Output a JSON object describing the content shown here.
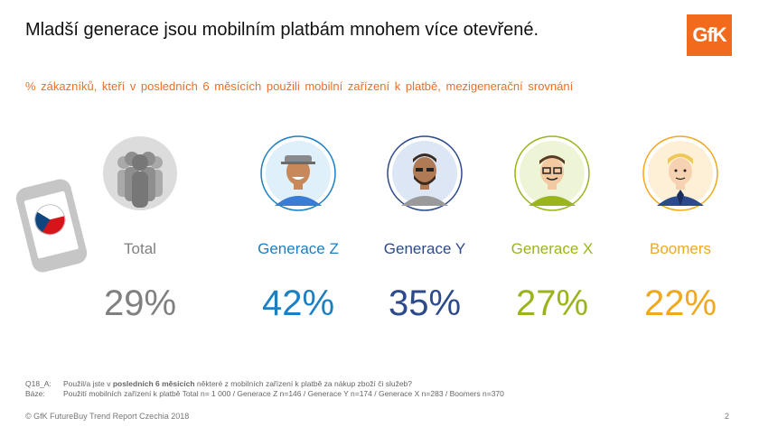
{
  "title": "Mladší generace jsou mobilním platbám mnohem více otevřené.",
  "logo_text": "GfK",
  "subtitle": "% zákazníků,  kteří  v posledních  6 měsících  použili mobilní  zařízení  k platbě, mezigenerační  srovnání",
  "groups": [
    {
      "label": "Total",
      "value": "29%",
      "color": "#808080"
    },
    {
      "label": "Generace Z",
      "value": "42%",
      "color": "#1b7fc4"
    },
    {
      "label": "Generace Y",
      "value": "35%",
      "color": "#2c4a8c"
    },
    {
      "label": "Generace X",
      "value": "27%",
      "color": "#9ab51c"
    },
    {
      "label": "Boomers",
      "value": "22%",
      "color": "#f0a81c"
    }
  ],
  "footnote": {
    "q_key": "Q18_A:",
    "q_text_pre": "Použil/a jste v ",
    "q_text_bold": "posledních 6 měsících",
    "q_text_post": " některé z mobilních  zařízení k platbě za nákup  zboží či služeb?",
    "base_key": "Báze:",
    "base_text": "Použití  mobilních  zařízení k platbě  Total  n= 1 000 / Generace Z n=146 / Generace Y n=174 / Generace X n=283 / Boomers n=370"
  },
  "copyright": "© GfK FutureBuy Trend Report Czechia 2018",
  "page_number": "2"
}
